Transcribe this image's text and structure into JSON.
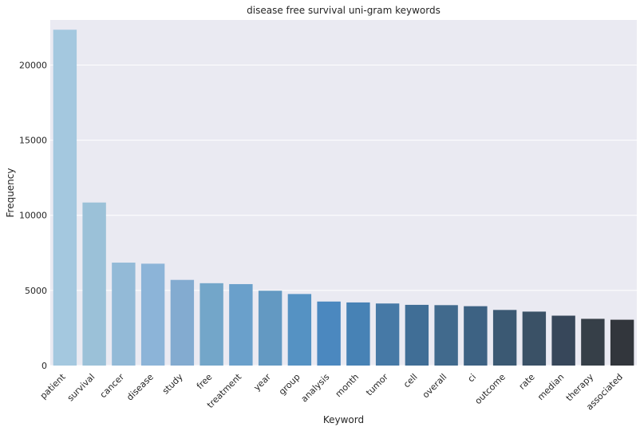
{
  "chart_data": {
    "type": "bar",
    "title": "disease free survival uni-gram keywords",
    "xlabel": "Keyword",
    "ylabel": "Frequency",
    "ylim": [
      0,
      23000
    ],
    "yticks": [
      0,
      5000,
      10000,
      15000,
      20000
    ],
    "grid": true,
    "categories": [
      "patient",
      "survival",
      "cancer",
      "disease",
      "study",
      "free",
      "treatment",
      "year",
      "group",
      "analysis",
      "month",
      "tumor",
      "cell",
      "overall",
      "ci",
      "outcome",
      "rate",
      "median",
      "therapy",
      "associated"
    ],
    "values": [
      22350,
      10850,
      6850,
      6780,
      5700,
      5480,
      5420,
      4980,
      4760,
      4260,
      4200,
      4130,
      4040,
      4020,
      3950,
      3700,
      3590,
      3320,
      3110,
      3050
    ],
    "colors": [
      "#a4c8df",
      "#9bc1d8",
      "#93bad7",
      "#8cb4d8",
      "#83abd0",
      "#73a6c9",
      "#6aa0cb",
      "#6399c2",
      "#5592c3",
      "#4b88bf",
      "#4782b5",
      "#4679a6",
      "#406e96",
      "#416a8d",
      "#3d6283",
      "#3b5973",
      "#3a5166",
      "#37475a",
      "#363f48",
      "#32363c"
    ],
    "background": "#eaeaf2",
    "grid_color": "#ffffff"
  }
}
